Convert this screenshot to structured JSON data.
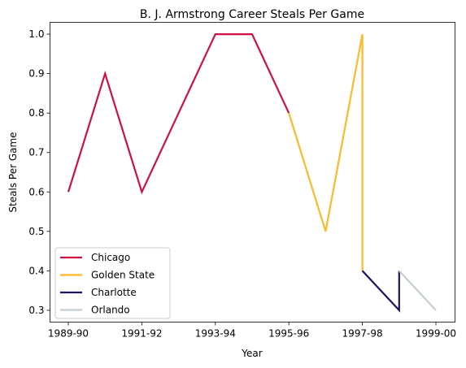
{
  "chart_data": {
    "type": "line",
    "title": "B. J. Armstrong Career Steals Per Game",
    "xlabel": "Year",
    "ylabel": "Steals Per Game",
    "x_categories": [
      "1989-90",
      "1990-91",
      "1991-92",
      "1992-93",
      "1993-94",
      "1994-95",
      "1995-96",
      "1996-97",
      "1997-98",
      "1998-99",
      "1999-00"
    ],
    "x_tick_labels": [
      "1989-90",
      "1991-92",
      "1993-94",
      "1995-96",
      "1997-98",
      "1999-00"
    ],
    "ylim": [
      0.27,
      1.03
    ],
    "y_ticks": [
      0.3,
      0.4,
      0.5,
      0.6,
      0.7,
      0.8,
      0.9,
      1.0
    ],
    "y_tick_labels": [
      "0.3",
      "0.4",
      "0.5",
      "0.6",
      "0.7",
      "0.8",
      "0.9",
      "1.0"
    ],
    "legend_position": "lower-left",
    "grid": false,
    "series": [
      {
        "name": "Chicago",
        "color": "#ce1141",
        "points": [
          [
            "1989-90",
            0.6
          ],
          [
            "1990-91",
            0.9
          ],
          [
            "1991-92",
            0.6
          ],
          [
            "1992-93",
            0.8
          ],
          [
            "1993-94",
            1.0
          ],
          [
            "1994-95",
            1.0
          ],
          [
            "1995-96",
            0.8
          ]
        ]
      },
      {
        "name": "Golden State",
        "color": "#fdb927",
        "points": [
          [
            "1995-96",
            0.8
          ],
          [
            "1996-97",
            0.5
          ],
          [
            "1997-98",
            1.0
          ],
          [
            "1997-98",
            0.4
          ]
        ]
      },
      {
        "name": "Charlotte",
        "color": "#1d1160",
        "points": [
          [
            "1997-98",
            0.4
          ],
          [
            "1998-99",
            0.3
          ],
          [
            "1998-99",
            0.4
          ]
        ]
      },
      {
        "name": "Orlando",
        "color": "#c4ced4",
        "points": [
          [
            "1998-99",
            0.4
          ],
          [
            "1999-00",
            0.3
          ]
        ]
      }
    ]
  }
}
